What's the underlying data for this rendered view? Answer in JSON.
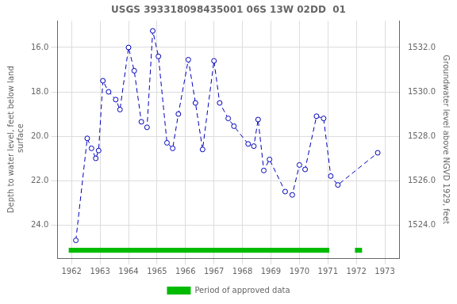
{
  "chart_data": {
    "type": "line",
    "title": "USGS 393318098435001 06S 13W 02DD  01",
    "ylabel": "Depth to water level, feet below land\n surface",
    "y2label": "Groundwater level above NGVD 1929, feet",
    "x": [
      1962.15,
      1962.55,
      1962.7,
      1962.85,
      1962.95,
      1963.1,
      1963.3,
      1963.55,
      1963.7,
      1964.0,
      1964.2,
      1964.45,
      1964.65,
      1964.85,
      1965.05,
      1965.35,
      1965.55,
      1965.75,
      1966.1,
      1966.35,
      1966.6,
      1967.0,
      1967.2,
      1967.5,
      1967.7,
      1968.2,
      1968.4,
      1968.55,
      1968.75,
      1968.95,
      1969.5,
      1969.75,
      1970.0,
      1970.2,
      1970.6,
      1970.85,
      1971.1,
      1971.35,
      1972.75
    ],
    "values": [
      24.7,
      20.1,
      20.55,
      21.0,
      20.65,
      17.5,
      18.0,
      18.35,
      18.8,
      16.0,
      17.05,
      19.35,
      19.6,
      15.25,
      16.4,
      20.3,
      20.55,
      19.0,
      16.55,
      18.5,
      20.6,
      16.6,
      18.5,
      19.2,
      19.55,
      20.35,
      20.45,
      19.25,
      21.55,
      21.05,
      22.5,
      22.65,
      21.3,
      21.5,
      19.1,
      19.2,
      21.8,
      22.2,
      20.75
    ],
    "color": "#0000BB",
    "line_style": "dashed",
    "marker": "circle",
    "periods": {
      "name": "Period of approved data",
      "color": "#00BB00",
      "ranges": [
        [
          1961.9,
          1971.05
        ],
        [
          1971.95,
          1972.2
        ]
      ],
      "y": 25.15,
      "height": 0.22
    },
    "xlim": [
      1961.5,
      1973.5
    ],
    "xticks": [
      1962,
      1963,
      1964,
      1965,
      1966,
      1967,
      1968,
      1969,
      1970,
      1971,
      1972,
      1973
    ],
    "ylim": [
      25.5,
      14.8
    ],
    "yticks": [
      {
        "value": 16.0,
        "label": "16.0"
      },
      {
        "value": 18.0,
        "label": "18.0"
      },
      {
        "value": 20.0,
        "label": "20.0"
      },
      {
        "value": 22.0,
        "label": "22.0"
      },
      {
        "value": 24.0,
        "label": "24.0"
      }
    ],
    "y2lim": [
      1522.5,
      1533.2
    ],
    "y2ticks": [
      {
        "value": 1524.0,
        "label": "1524.0"
      },
      {
        "value": 1526.0,
        "label": "1526.0"
      },
      {
        "value": 1528.0,
        "label": "1528.0"
      },
      {
        "value": 1530.0,
        "label": "1530.0"
      },
      {
        "value": 1532.0,
        "label": "1532.0"
      }
    ],
    "grid": true,
    "legend": "bottom"
  }
}
